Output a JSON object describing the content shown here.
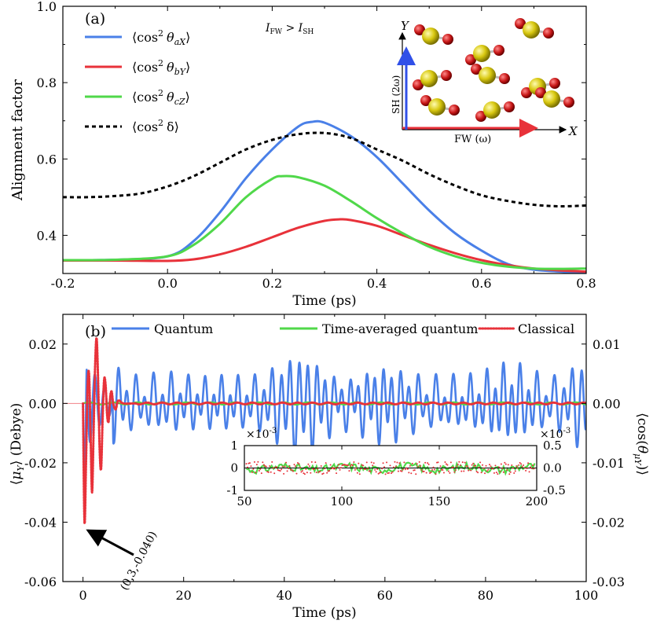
{
  "chart_data": [
    {
      "panel_label": "(a)",
      "type": "line",
      "xlabel": "Time (ps)",
      "ylabel": "Alignment factor",
      "xlim": [
        -0.2,
        0.8
      ],
      "ylim": [
        0.3,
        1.0
      ],
      "x_ticks": [
        "-0.2",
        "0.0",
        "0.2",
        "0.4",
        "0.6",
        "0.8"
      ],
      "y_ticks": [
        "0.4",
        "0.6",
        "0.8",
        "1.0"
      ],
      "annotation": "I_FW > I_SH",
      "series": [
        {
          "name": "⟨cos² θ_aX⟩",
          "label_main": "⟨cos",
          "label_sub": "aX",
          "label_end": "⟩",
          "color": "#4a80e8",
          "style": "solid",
          "x": [
            -0.2,
            -0.1,
            0.0,
            0.05,
            0.1,
            0.15,
            0.2,
            0.25,
            0.275,
            0.3,
            0.35,
            0.4,
            0.45,
            0.5,
            0.55,
            0.6,
            0.65,
            0.7,
            0.75,
            0.8
          ],
          "y": [
            0.335,
            0.336,
            0.345,
            0.385,
            0.46,
            0.55,
            0.625,
            0.685,
            0.697,
            0.695,
            0.66,
            0.605,
            0.535,
            0.465,
            0.405,
            0.36,
            0.325,
            0.31,
            0.305,
            0.3
          ]
        },
        {
          "name": "⟨cos² θ_bY⟩",
          "label_main": "⟨cos",
          "label_sub": "bY",
          "label_end": "⟩",
          "color": "#e8323a",
          "style": "solid",
          "x": [
            -0.2,
            -0.1,
            0.0,
            0.05,
            0.1,
            0.15,
            0.2,
            0.25,
            0.3,
            0.33,
            0.35,
            0.4,
            0.45,
            0.5,
            0.55,
            0.6,
            0.65,
            0.7,
            0.75,
            0.8
          ],
          "y": [
            0.334,
            0.334,
            0.333,
            0.337,
            0.35,
            0.37,
            0.395,
            0.42,
            0.438,
            0.442,
            0.44,
            0.425,
            0.4,
            0.375,
            0.353,
            0.335,
            0.322,
            0.313,
            0.308,
            0.305
          ]
        },
        {
          "name": "⟨cos² θ_cZ⟩",
          "label_main": "⟨cos",
          "label_sub": "cZ",
          "label_end": "⟩",
          "color": "#50d84a",
          "style": "solid",
          "x": [
            -0.2,
            -0.1,
            0.0,
            0.05,
            0.1,
            0.15,
            0.2,
            0.22,
            0.25,
            0.3,
            0.35,
            0.4,
            0.45,
            0.5,
            0.55,
            0.6,
            0.65,
            0.7,
            0.75,
            0.8
          ],
          "y": [
            0.335,
            0.336,
            0.345,
            0.375,
            0.43,
            0.5,
            0.548,
            0.555,
            0.552,
            0.53,
            0.49,
            0.445,
            0.405,
            0.37,
            0.345,
            0.328,
            0.318,
            0.313,
            0.312,
            0.313
          ]
        },
        {
          "name": "⟨cos² δ⟩",
          "label_main": "⟨cos",
          "label_sub": "",
          "label_end": "δ⟩",
          "color": "#000000",
          "style": "dashed",
          "x": [
            -0.2,
            -0.15,
            -0.1,
            -0.05,
            0.0,
            0.05,
            0.1,
            0.15,
            0.2,
            0.25,
            0.3,
            0.35,
            0.4,
            0.45,
            0.5,
            0.55,
            0.6,
            0.65,
            0.7,
            0.75,
            0.8
          ],
          "y": [
            0.5,
            0.5,
            0.503,
            0.51,
            0.528,
            0.555,
            0.59,
            0.625,
            0.65,
            0.665,
            0.668,
            0.655,
            0.625,
            0.595,
            0.56,
            0.53,
            0.505,
            0.49,
            0.48,
            0.476,
            0.478
          ]
        }
      ],
      "inset": {
        "x_axis_label": "X",
        "y_axis_label": "Y",
        "x_beam_label": "FW (ω)",
        "y_beam_label": "SH (2ω)"
      }
    },
    {
      "panel_label": "(b)",
      "type": "line",
      "xlabel": "Time (ps)",
      "ylabel_left": "⟨μ_Y⟩ (Debye)",
      "ylabel_right": "⟨cos(θ_μY)⟩",
      "xlim": [
        -4,
        100
      ],
      "ylim_left": [
        -0.06,
        0.03
      ],
      "ylim_right": [
        -0.03,
        0.015
      ],
      "x_ticks": [
        "0",
        "20",
        "40",
        "60",
        "80",
        "100"
      ],
      "y_ticks_left": [
        "-0.06",
        "-0.04",
        "-0.02",
        "0.00",
        "0.02"
      ],
      "y_ticks_right": [
        "-0.03",
        "-0.02",
        "-0.01",
        "0.00",
        "0.01"
      ],
      "legend": [
        {
          "name": "Quantum",
          "color": "#4a80e8",
          "style": "solid"
        },
        {
          "name": "Time-averaged quantum",
          "color": "#50d84a",
          "style": "solid"
        },
        {
          "name": "Classical",
          "color": "#e8323a",
          "style": "dotted"
        }
      ],
      "annotation": "(0.3,-0.040)",
      "annotation_point": [
        0.3,
        -0.04
      ],
      "classical_initial": {
        "x": [
          0,
          0.3,
          0.6,
          0.9,
          1.2,
          1.5,
          1.8,
          2.1,
          2.4,
          2.7,
          3.0,
          3.3,
          3.6,
          3.9,
          4.2,
          4.5,
          4.8,
          5.1,
          5.4,
          5.7,
          6.0,
          6.5,
          7.0,
          8.0,
          10.0
        ],
        "y": [
          0.0,
          -0.04,
          -0.02,
          0.005,
          0.01,
          -0.01,
          -0.03,
          -0.01,
          0.012,
          0.022,
          0.008,
          -0.015,
          -0.022,
          -0.005,
          0.008,
          0.006,
          -0.004,
          -0.006,
          0.002,
          0.004,
          0.0,
          -0.002,
          0.001,
          0.0,
          0.0
        ]
      },
      "inset": {
        "x_ticks": [
          "50",
          "100",
          "150",
          "200"
        ],
        "y_ticks_left": [
          "-1",
          "0",
          "1"
        ],
        "y_ticks_right": [
          "-0.5",
          "0.0",
          "0.5"
        ],
        "exp_left": "×10",
        "exp_right": "×10",
        "exp_power": "-3",
        "xlim": [
          50,
          200
        ],
        "ylim_left": [
          -1,
          1
        ],
        "ylim_right": [
          -0.5,
          0.5
        ]
      }
    }
  ]
}
